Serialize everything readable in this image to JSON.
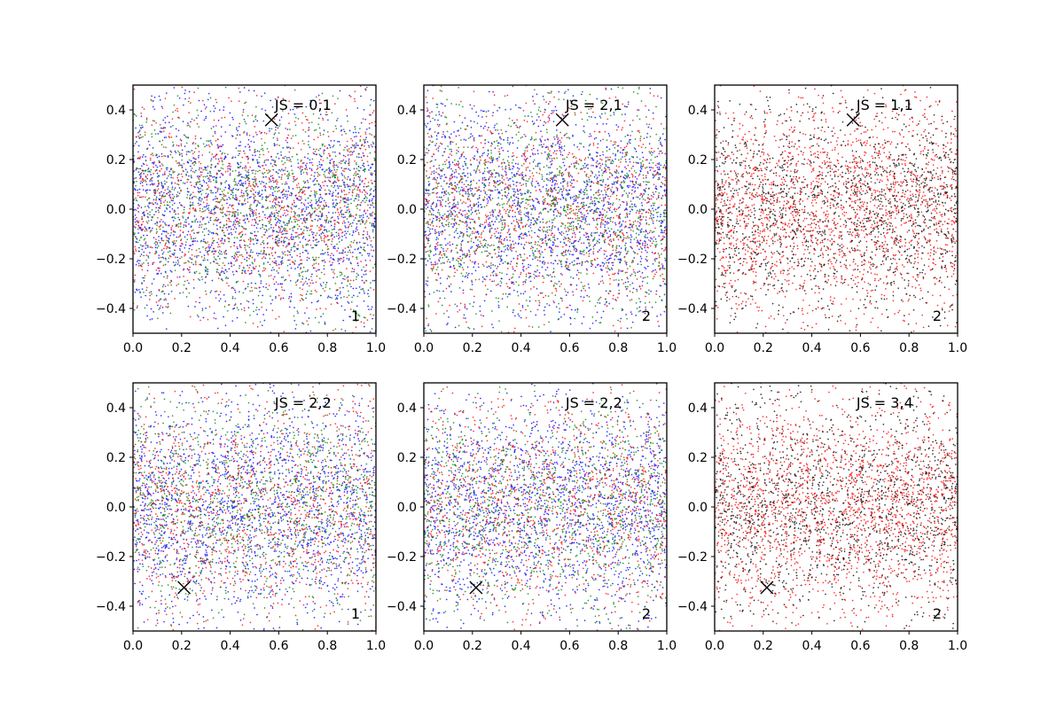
{
  "chart_data": [
    {
      "type": "scatter",
      "title": "JS = 0,1",
      "corner_label": "1",
      "xlim": [
        0.0,
        1.0
      ],
      "ylim": [
        -0.5,
        0.5
      ],
      "xticks": [
        "0.0",
        "0.2",
        "0.4",
        "0.6",
        "0.8",
        "1.0"
      ],
      "yticks": [
        "-0.4",
        "-0.2",
        "0.0",
        "0.2",
        "0.4"
      ],
      "marker": {
        "symbol": "x",
        "x": 0.57,
        "y": 0.36
      },
      "series": [
        {
          "color": "#0000ff",
          "count": 1800
        },
        {
          "color": "#ff0000",
          "count": 1200
        },
        {
          "color": "#008000",
          "count": 1200
        }
      ]
    },
    {
      "type": "scatter",
      "title": "JS = 2,1",
      "corner_label": "2",
      "xlim": [
        0.0,
        1.0
      ],
      "ylim": [
        -0.5,
        0.5
      ],
      "xticks": [
        "0.0",
        "0.2",
        "0.4",
        "0.6",
        "0.8",
        "1.0"
      ],
      "yticks": [
        "-0.4",
        "-0.2",
        "0.0",
        "0.2",
        "0.4"
      ],
      "marker": {
        "symbol": "x",
        "x": 0.57,
        "y": 0.36
      },
      "series": [
        {
          "color": "#0000ff",
          "count": 1800
        },
        {
          "color": "#ff0000",
          "count": 1200
        },
        {
          "color": "#008000",
          "count": 1200
        }
      ]
    },
    {
      "type": "scatter",
      "title": "JS = 1,1",
      "corner_label": "2",
      "xlim": [
        0.0,
        1.0
      ],
      "ylim": [
        -0.5,
        0.5
      ],
      "xticks": [
        "0.0",
        "0.2",
        "0.4",
        "0.6",
        "0.8",
        "1.0"
      ],
      "yticks": [
        "-0.4",
        "-0.2",
        "0.0",
        "0.2",
        "0.4"
      ],
      "marker": {
        "symbol": "x",
        "x": 0.57,
        "y": 0.36
      },
      "series": [
        {
          "color": "#ff0000",
          "count": 2000
        },
        {
          "color": "#000000",
          "count": 1500
        }
      ]
    },
    {
      "type": "scatter",
      "title": "JS = 2,2",
      "corner_label": "1",
      "xlim": [
        0.0,
        1.0
      ],
      "ylim": [
        -0.5,
        0.5
      ],
      "xticks": [
        "0.0",
        "0.2",
        "0.4",
        "0.6",
        "0.8",
        "1.0"
      ],
      "yticks": [
        "-0.4",
        "-0.2",
        "0.0",
        "0.2",
        "0.4"
      ],
      "marker": {
        "symbol": "x",
        "x": 0.21,
        "y": -0.325
      },
      "series": [
        {
          "color": "#0000ff",
          "count": 1800
        },
        {
          "color": "#ff0000",
          "count": 1200
        },
        {
          "color": "#008000",
          "count": 1200
        }
      ]
    },
    {
      "type": "scatter",
      "title": "JS = 2,2",
      "corner_label": "2",
      "xlim": [
        0.0,
        1.0
      ],
      "ylim": [
        -0.5,
        0.5
      ],
      "xticks": [
        "0.0",
        "0.2",
        "0.4",
        "0.6",
        "0.8",
        "1.0"
      ],
      "yticks": [
        "-0.4",
        "-0.2",
        "0.0",
        "0.2",
        "0.4"
      ],
      "marker": {
        "symbol": "x",
        "x": 0.215,
        "y": -0.325
      },
      "series": [
        {
          "color": "#0000ff",
          "count": 1800
        },
        {
          "color": "#ff0000",
          "count": 1200
        },
        {
          "color": "#008000",
          "count": 1200
        }
      ]
    },
    {
      "type": "scatter",
      "title": "JS = 3,4",
      "corner_label": "2",
      "xlim": [
        0.0,
        1.0
      ],
      "ylim": [
        -0.5,
        0.5
      ],
      "xticks": [
        "0.0",
        "0.2",
        "0.4",
        "0.6",
        "0.8",
        "1.0"
      ],
      "yticks": [
        "-0.4",
        "-0.2",
        "0.0",
        "0.2",
        "0.4"
      ],
      "marker": {
        "symbol": "x",
        "x": 0.215,
        "y": -0.325
      },
      "series": [
        {
          "color": "#ff0000",
          "count": 2000
        },
        {
          "color": "#000000",
          "count": 1500
        }
      ]
    }
  ]
}
